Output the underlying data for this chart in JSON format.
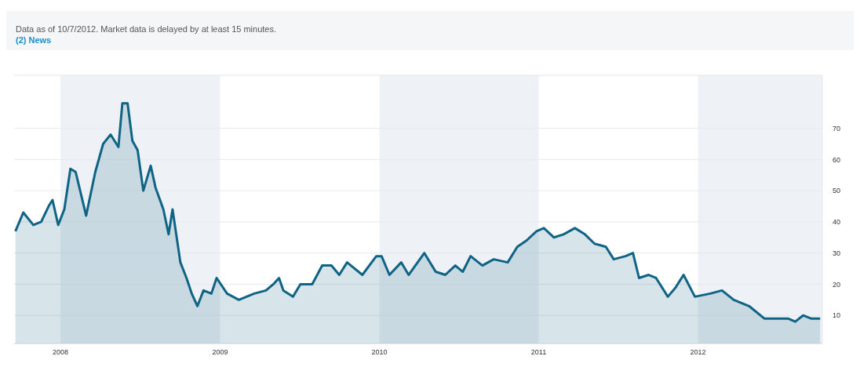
{
  "chart_data": {
    "type": "area",
    "subtitle": "Data as of 10/7/2012. Market data is delayed by at least 15 minutes.",
    "annotations": [
      "(2) News"
    ],
    "x": [
      "2007-09-20",
      "2007-10-08",
      "2007-10-31",
      "2007-11-18",
      "2007-12-05",
      "2007-12-14",
      "2007-12-27",
      "2008-01-10",
      "2008-01-24",
      "2008-02-05",
      "2008-02-29",
      "2008-03-21",
      "2008-04-08",
      "2008-04-25",
      "2008-05-13",
      "2008-05-22",
      "2008-06-03",
      "2008-06-14",
      "2008-06-26",
      "2008-07-09",
      "2008-07-26",
      "2008-08-06",
      "2008-08-24",
      "2008-09-05",
      "2008-09-14",
      "2008-10-02",
      "2008-10-16",
      "2008-10-28",
      "2008-11-10",
      "2008-11-24",
      "2008-12-12",
      "2008-12-24",
      "2009-01-17",
      "2009-02-13",
      "2009-03-20",
      "2009-04-16",
      "2009-05-03",
      "2009-05-16",
      "2009-05-26",
      "2009-06-17",
      "2009-07-04",
      "2009-07-31",
      "2009-08-23",
      "2009-09-13",
      "2009-10-01",
      "2009-10-19",
      "2009-11-23",
      "2009-12-25",
      "2010-01-06",
      "2010-01-24",
      "2010-02-20",
      "2010-03-09",
      "2010-04-14",
      "2010-05-10",
      "2010-06-01",
      "2010-06-24",
      "2010-07-11",
      "2010-07-29",
      "2010-08-25",
      "2010-09-20",
      "2010-10-22",
      "2010-11-13",
      "2010-12-04",
      "2010-12-27",
      "2011-01-13",
      "2011-02-05",
      "2011-02-27",
      "2011-03-25",
      "2011-04-17",
      "2011-05-09",
      "2011-06-04",
      "2011-06-22",
      "2011-07-19",
      "2011-08-05",
      "2011-08-19",
      "2011-09-10",
      "2011-09-27",
      "2011-10-24",
      "2011-11-11",
      "2011-11-29",
      "2011-12-25",
      "2012-01-29",
      "2012-02-25",
      "2012-03-23",
      "2012-04-27",
      "2012-06-01",
      "2012-07-07",
      "2012-07-25",
      "2012-08-11",
      "2012-08-29",
      "2012-09-16",
      "2012-10-07"
    ],
    "series": [
      {
        "color": "#0f6385",
        "values": [
          37,
          43,
          39,
          40,
          45,
          47,
          39,
          44,
          57,
          56,
          42,
          56,
          65,
          68,
          64,
          78,
          78,
          66,
          63,
          50,
          58,
          51,
          44,
          36,
          44,
          27,
          22,
          17,
          13,
          18,
          17,
          22,
          17,
          15,
          17,
          18,
          20,
          22,
          18,
          16,
          20,
          20,
          26,
          26,
          23,
          27,
          23,
          29,
          29,
          23,
          27,
          23,
          30,
          24,
          23,
          26,
          24,
          29,
          26,
          28,
          27,
          32,
          34,
          37,
          38,
          35,
          36,
          38,
          36,
          33,
          32,
          28,
          29,
          30,
          22,
          23,
          22,
          16,
          19,
          23,
          16,
          17,
          18,
          15,
          13,
          9,
          9,
          9,
          8,
          10,
          9,
          9
        ]
      }
    ],
    "xlim": [
      "2007-09-17",
      "2012-10-12"
    ],
    "xticks": [
      {
        "value": "2008-01-01",
        "label": "2008"
      },
      {
        "value": "2009-01-01",
        "label": "2009"
      },
      {
        "value": "2010-01-01",
        "label": "2010"
      },
      {
        "value": "2011-01-01",
        "label": "2011"
      },
      {
        "value": "2012-01-01",
        "label": "2012"
      }
    ],
    "ylim": [
      1,
      87
    ],
    "yticks": [
      10,
      20,
      30,
      40,
      50,
      60,
      70
    ],
    "grid": "y",
    "bands": [
      {
        "axis": "x",
        "from": "2008-01-01",
        "to": "2009-01-01",
        "color": "#eef1f5"
      },
      {
        "axis": "x",
        "from": "2010-01-01",
        "to": "2011-01-01",
        "color": "#eef1f5"
      },
      {
        "axis": "x",
        "from": "2012-01-01",
        "to": "2012-10-12",
        "color": "#eef1f5"
      }
    ]
  }
}
